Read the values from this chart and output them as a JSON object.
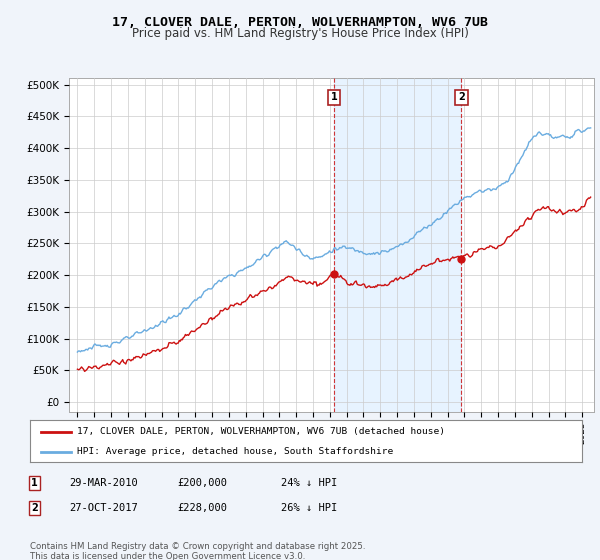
{
  "title": "17, CLOVER DALE, PERTON, WOLVERHAMPTON, WV6 7UB",
  "subtitle": "Price paid vs. HM Land Registry's House Price Index (HPI)",
  "ylabel_ticks": [
    "£0",
    "£50K",
    "£100K",
    "£150K",
    "£200K",
    "£250K",
    "£300K",
    "£350K",
    "£400K",
    "£450K",
    "£500K"
  ],
  "ytick_values": [
    0,
    50000,
    100000,
    150000,
    200000,
    250000,
    300000,
    350000,
    400000,
    450000,
    500000
  ],
  "legend_entry1": "17, CLOVER DALE, PERTON, WOLVERHAMPTON, WV6 7UB (detached house)",
  "legend_entry2": "HPI: Average price, detached house, South Staffordshire",
  "transaction1_date": "29-MAR-2010",
  "transaction1_price": "£200,000",
  "transaction1_hpi": "24% ↓ HPI",
  "transaction2_date": "27-OCT-2017",
  "transaction2_price": "£228,000",
  "transaction2_hpi": "26% ↓ HPI",
  "footnote": "Contains HM Land Registry data © Crown copyright and database right 2025.\nThis data is licensed under the Open Government Licence v3.0.",
  "hpi_color": "#6aace0",
  "price_color": "#cc1111",
  "vline_color": "#cc2222",
  "shade_color": "#ddeeff",
  "background_color": "#f0f4fa",
  "plot_bg_color": "#ffffff",
  "grid_color": "#cccccc",
  "marker1_x": 2010.24,
  "marker2_x": 2017.82,
  "xlim_left": 1994.5,
  "xlim_right": 2025.7,
  "ylim_top": 510000,
  "ylim_bottom": -15000
}
